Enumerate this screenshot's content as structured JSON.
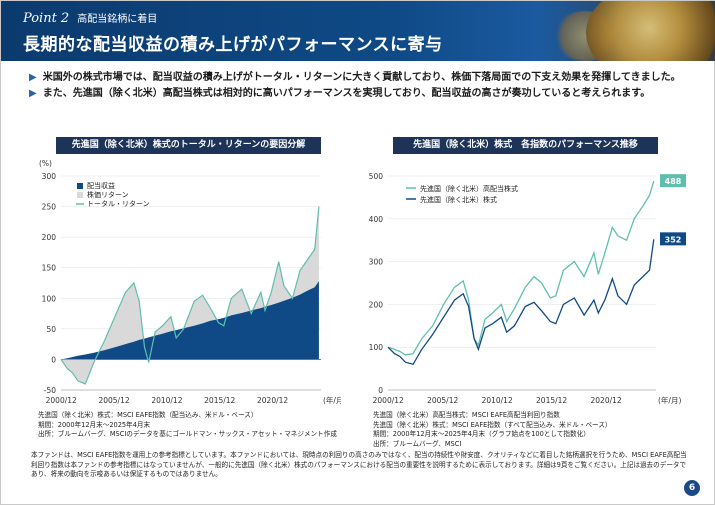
{
  "header": {
    "point_label": "Point 2",
    "point_sub": "高配当銘柄に着目",
    "title": "長期的な配当収益の積み上げがパフォーマンスに寄与"
  },
  "bullets": [
    "米国外の株式市場では、配当収益の積み上げがトータル・リターンに大きく貢献しており、株価下落局面での下支え効果を発揮してきました。",
    "また、先進国（除く北米）高配当株式は相対的に高いパフォーマンスを実現しており、配当収益の高さが奏功していると考えられます。"
  ],
  "left_panel": {
    "title": "先進国（除く北米）株式のトータル・リターンの要因分解",
    "notes": [
      "先進国（除く北米）株式：MSCI EAFE指数（配当込み、米ドル・ベース）",
      "期間：2000年12月末～2025年4月末",
      "出所：ブルームバーグ、MSCIのデータを基にゴールドマン・サックス・アセット・マネジメント作成"
    ]
  },
  "right_panel": {
    "title": "先進国（除く北米）株式　各指数のパフォーマンス推移",
    "notes": [
      "先進国（除く北米）高配当株式：MSCI EAFE高配当利回り指数",
      "先進国（除く北米）株式：MSCI EAFE指数（すべて配当込み、米ドル・ベース）",
      "期間：2000年12月末～2025年4月末（グラフ始点を100として指数化）",
      "出所：ブルームバーグ、MSCI"
    ]
  },
  "footer": "本ファンドは、MSCI EAFE指数を運用上の参考指標としています。本ファンドにおいては、現時点の利回りの高さのみではなく、配当の持続性や財安度、クオリティなどに着目した銘柄選択を行うため、MSCI EAFE高配当利回り指数は本ファンドの参考指標にはなっていませんが、一般的に先進国（除く北米）株式のパフォーマンスにおける配当の重要性を説明するために表示しております。詳細は9頁をご覧ください。上記は過去のデータであり、将来の動向を示唆あるいは保証するものではありません。",
  "page_number": "6",
  "colors": {
    "navy": "#0f4a86",
    "teal": "#5fbfae",
    "gray": "#d9d9d9"
  },
  "chart_data": [
    {
      "type": "area",
      "unit_label": "(%)",
      "x_tick_labels": [
        "2000/12",
        "2005/12",
        "2010/12",
        "2015/12",
        "2020/12"
      ],
      "x_unit": "(年/月)",
      "y_ticks": [
        "-50",
        "0",
        "50",
        "100",
        "150",
        "200",
        "250",
        "300"
      ],
      "ylim": [
        -50,
        300
      ],
      "legend": [
        "配当収益",
        "株価リターン",
        "トータル・リターン"
      ],
      "x": [
        2000.9,
        2001.5,
        2002.0,
        2002.5,
        2003.2,
        2004.0,
        2005.0,
        2006.0,
        2007.0,
        2007.8,
        2008.3,
        2008.8,
        2009.2,
        2009.8,
        2010.5,
        2011.3,
        2011.8,
        2012.5,
        2013.5,
        2014.3,
        2015.0,
        2015.8,
        2016.3,
        2017.0,
        2018.0,
        2018.9,
        2019.8,
        2020.2,
        2020.8,
        2021.5,
        2022.0,
        2022.8,
        2023.5,
        2024.3,
        2024.9,
        2025.3
      ],
      "series": [
        {
          "name": "配当収益",
          "values": [
            0,
            2,
            4,
            6,
            8,
            11,
            15,
            20,
            25,
            29,
            32,
            34,
            36,
            39,
            42,
            46,
            48,
            51,
            55,
            59,
            63,
            66,
            68,
            72,
            76,
            80,
            84,
            86,
            89,
            93,
            96,
            101,
            106,
            113,
            118,
            128
          ]
        },
        {
          "name": "トータル・リターン",
          "values": [
            0,
            -15,
            -22,
            -35,
            -40,
            -5,
            30,
            70,
            110,
            125,
            95,
            20,
            -5,
            45,
            55,
            70,
            35,
            50,
            95,
            105,
            85,
            60,
            55,
            100,
            115,
            75,
            110,
            80,
            110,
            160,
            120,
            100,
            145,
            165,
            180,
            250
          ]
        }
      ]
    },
    {
      "type": "line",
      "x_tick_labels": [
        "2000/12",
        "2005/12",
        "2010/12",
        "2015/12",
        "2020/12"
      ],
      "x_unit": "(年/月)",
      "y_ticks": [
        "0",
        "100",
        "200",
        "300",
        "400",
        "500"
      ],
      "ylim": [
        0,
        500
      ],
      "end_labels": [
        "488",
        "352"
      ],
      "x": [
        2000.9,
        2001.5,
        2002.0,
        2002.5,
        2003.2,
        2004.0,
        2005.0,
        2006.0,
        2007.0,
        2007.8,
        2008.3,
        2008.8,
        2009.2,
        2009.8,
        2010.5,
        2011.3,
        2011.8,
        2012.5,
        2013.5,
        2014.3,
        2015.0,
        2015.8,
        2016.3,
        2017.0,
        2018.0,
        2018.9,
        2019.8,
        2020.2,
        2020.8,
        2021.5,
        2022.0,
        2022.8,
        2023.5,
        2024.3,
        2024.9,
        2025.3
      ],
      "series": [
        {
          "name": "先進国（除く北米）高配当株式",
          "values": [
            100,
            95,
            90,
            82,
            85,
            120,
            150,
            200,
            240,
            255,
            210,
            120,
            105,
            165,
            180,
            200,
            160,
            190,
            240,
            265,
            250,
            215,
            220,
            280,
            300,
            265,
            320,
            270,
            320,
            380,
            360,
            350,
            400,
            430,
            455,
            488
          ]
        },
        {
          "name": "先進国（除く北米）株式",
          "values": [
            100,
            85,
            78,
            65,
            60,
            95,
            130,
            170,
            210,
            225,
            195,
            120,
            95,
            145,
            155,
            170,
            135,
            150,
            195,
            205,
            185,
            160,
            155,
            200,
            215,
            175,
            210,
            180,
            210,
            260,
            220,
            200,
            245,
            265,
            280,
            352
          ]
        }
      ]
    }
  ]
}
